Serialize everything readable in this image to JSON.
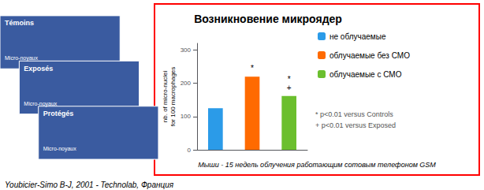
{
  "chart_data": {
    "type": "bar",
    "title": "Возникновение микроядер",
    "subtitle": "Мыши - 15 недель облучения работающим сотовым телефоном GSM",
    "caption": "Youbicier-Simo B-J, 2001 - Technolab, Франция",
    "categories": [
      null,
      null,
      null
    ],
    "series": [
      {
        "name": "не облучаемые",
        "color": "#2B9BE8",
        "values": [
          125,
          null,
          null
        ]
      },
      {
        "name": "облучаемые без СМО",
        "color": "#FF6A00",
        "values": [
          null,
          220,
          null
        ]
      },
      {
        "name": "облучаемые с СМО",
        "color": "#6BBF2E",
        "values": [
          null,
          null,
          162
        ]
      }
    ],
    "annotations": [
      null,
      "*",
      "*\n+"
    ],
    "footnotes": [
      "* p<0.01 versus Controls",
      "+ p<0.01 versus Exposed"
    ],
    "ylabel": "nb. of micro-nuclei\nfor 100 macrophages",
    "ylim": [
      0,
      320
    ],
    "yticks": [
      0,
      100,
      200,
      300
    ],
    "grid": false,
    "legend": "right",
    "tick_labels": "y",
    "images": [
      {
        "label": "Témoins",
        "text": "Micro-noyaux"
      },
      {
        "label": "Exposés",
        "text": "Micro-noyaux"
      },
      {
        "label": "Protégés",
        "text": "Micro-noyaux"
      }
    ],
    "image_color": "#3A5BA0",
    "border_color": "#FF0000"
  }
}
